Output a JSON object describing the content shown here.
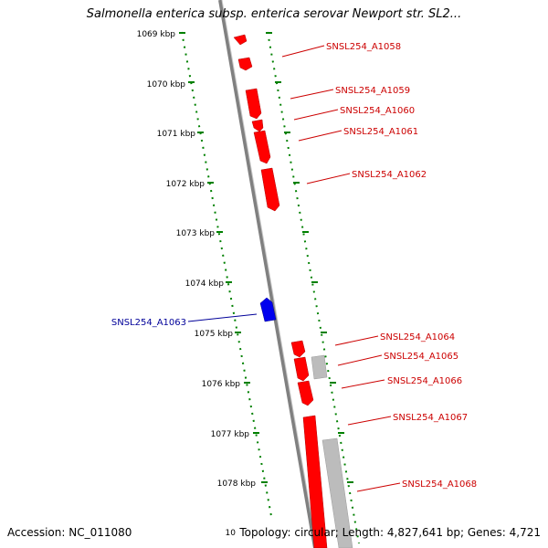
{
  "title": "Salmonella enterica subsp. enterica serovar Newport str. SL2...",
  "footer": {
    "accession": "Accession: NC_011080",
    "summary": "Topology: circular; Length: 4,827,641 bp; Genes: 4,721"
  },
  "colors": {
    "forward_gene": "#ff0000",
    "reverse_gene": "#0000cc",
    "other_feature": "#c0c0c0",
    "backbone": "#808080",
    "tick": "#008000",
    "forward_label": "#cc0000",
    "reverse_label": "#000099"
  },
  "ruler_ticks": [
    "1069 kbp",
    "1070 kbp",
    "1071 kbp",
    "1072 kbp",
    "1073 kbp",
    "1074 kbp",
    "1075 kbp",
    "1076 kbp",
    "1077 kbp",
    "1078 kbp",
    "10"
  ],
  "gene_labels": {
    "forward": [
      "SNSL254_A1058",
      "SNSL254_A1059",
      "SNSL254_A1060",
      "SNSL254_A1061",
      "SNSL254_A1062",
      "SNSL254_A1064",
      "SNSL254_A1065",
      "SNSL254_A1066",
      "SNSL254_A1067",
      "SNSL254_A1068"
    ],
    "reverse": [
      "SNSL254_A1063"
    ]
  }
}
